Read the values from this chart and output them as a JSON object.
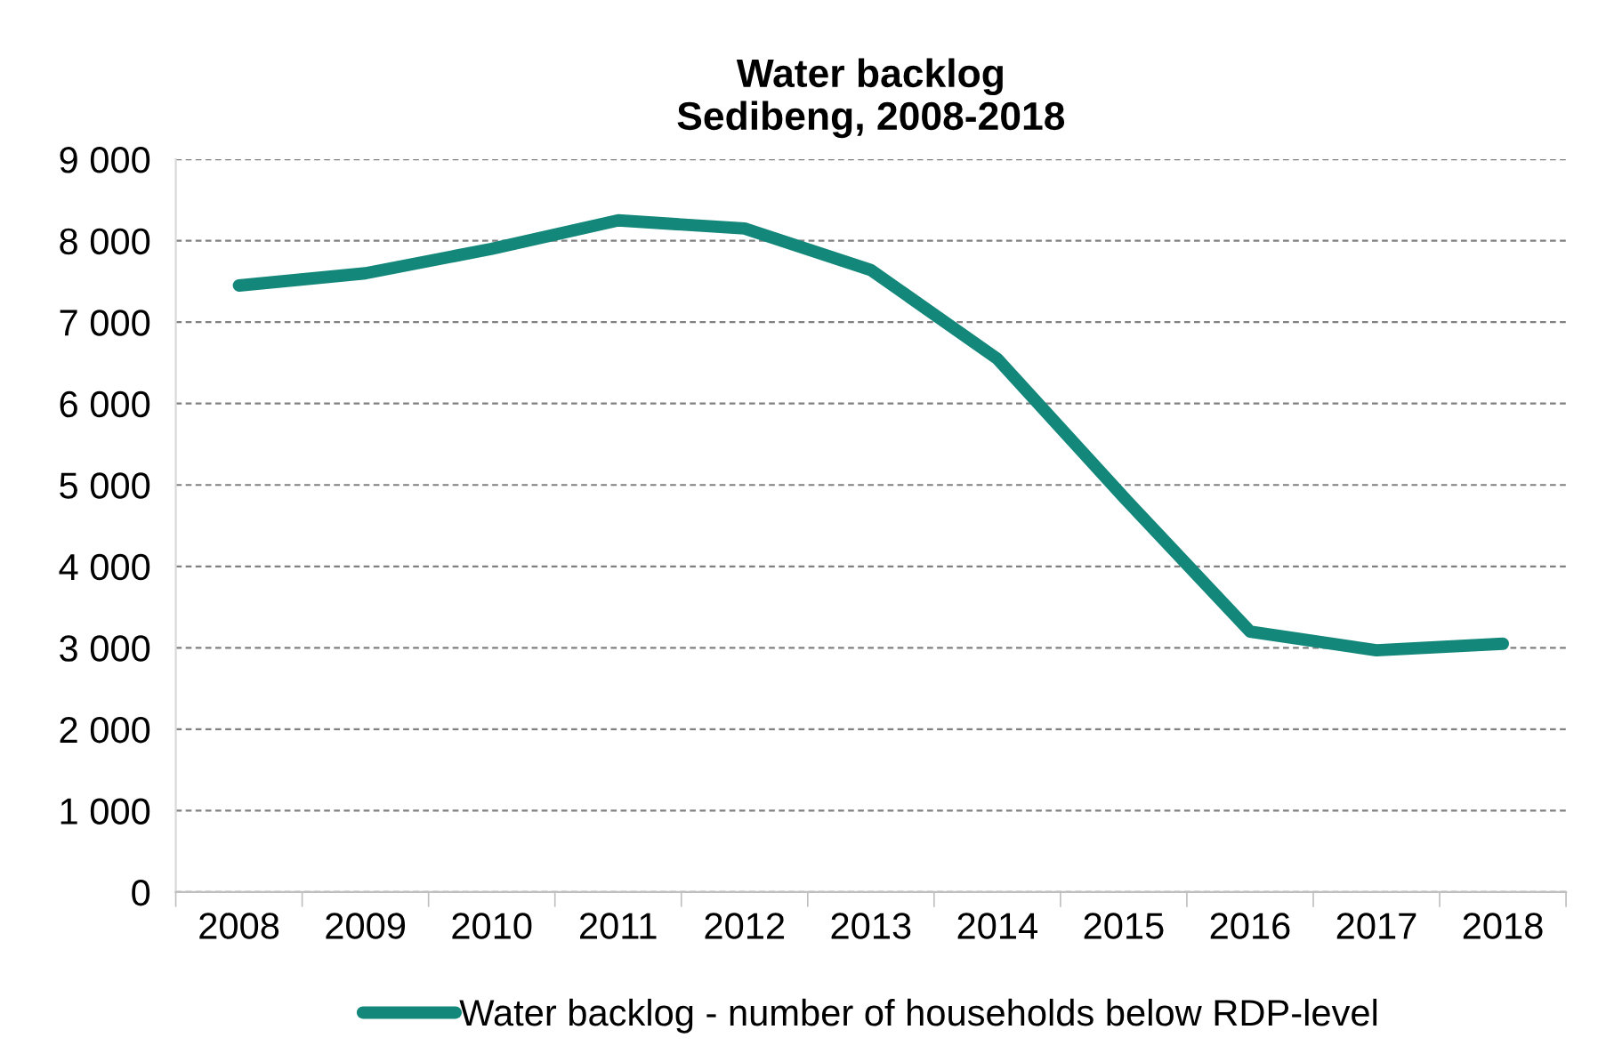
{
  "chart_data": {
    "type": "line",
    "title": "Water backlog\nSedibeng, 2008-2018",
    "categories": [
      "2008",
      "2009",
      "2010",
      "2011",
      "2012",
      "2013",
      "2014",
      "2015",
      "2016",
      "2017",
      "2018"
    ],
    "series": [
      {
        "name": "Water backlog - number of households below RDP-level",
        "color": "#13887a",
        "values": [
          7450,
          7600,
          7900,
          8250,
          8150,
          7640,
          6550,
          4850,
          3200,
          2970,
          3050
        ]
      }
    ],
    "ylim": [
      0,
      9000
    ],
    "yticks": [
      {
        "value": 0,
        "label": "0"
      },
      {
        "value": 1000,
        "label": "1 000"
      },
      {
        "value": 2000,
        "label": "2 000"
      },
      {
        "value": 3000,
        "label": "3 000"
      },
      {
        "value": 4000,
        "label": "4 000"
      },
      {
        "value": 5000,
        "label": "5 000"
      },
      {
        "value": 6000,
        "label": "6 000"
      },
      {
        "value": 7000,
        "label": "7 000"
      },
      {
        "value": 8000,
        "label": "8 000"
      },
      {
        "value": 9000,
        "label": "9 000"
      }
    ],
    "grid": "y",
    "legend": "bottom",
    "marker": "none",
    "line_style": "solid"
  }
}
